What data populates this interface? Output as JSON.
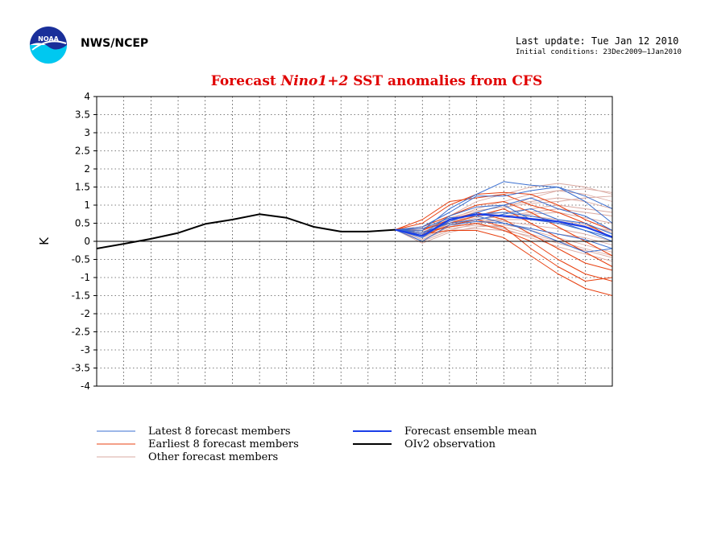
{
  "header": {
    "org": "NWS/NCEP",
    "last_update": "Last update: Tue Jan 12 2010",
    "initial_conditions": "Initial conditions: 23Dec2009–1Jan2010"
  },
  "logo_text": "NOAA",
  "chart_data": {
    "type": "line",
    "title_prefix": "Forecast ",
    "title_italic": "Nino1+2",
    "title_suffix": " SST anomalies from CFS",
    "ylabel": "K",
    "ylim": [
      -4,
      4
    ],
    "yticks": [
      4,
      3.5,
      3,
      2.5,
      2,
      1.5,
      1,
      0.5,
      0,
      -0.5,
      -1,
      -1.5,
      -2,
      -2.5,
      -3,
      -3.5,
      -4
    ],
    "xlim": [
      0,
      19
    ],
    "grid": true,
    "legend_position": "bottom",
    "colors": {
      "latest": "#3a6fd0",
      "earliest": "#e84010",
      "other": "#d9a8a0",
      "mean": "#1a3ee8",
      "observation": "#000000"
    },
    "observation": {
      "name": "OIv2 observation",
      "x": [
        0,
        1,
        2,
        3,
        4,
        5,
        6,
        7,
        8,
        9,
        10,
        11
      ],
      "y": [
        -0.2,
        -0.07,
        0.07,
        0.23,
        0.48,
        0.6,
        0.75,
        0.65,
        0.4,
        0.27,
        0.27,
        0.32
      ]
    },
    "ensemble_mean": {
      "name": "Forecast ensemble mean",
      "x": [
        11,
        12,
        13,
        14,
        15,
        16,
        17,
        18,
        19
      ],
      "y": [
        0.32,
        0.15,
        0.6,
        0.75,
        0.7,
        0.62,
        0.55,
        0.4,
        0.12
      ]
    },
    "member_x": [
      11,
      12,
      13,
      14,
      15,
      16,
      17,
      18,
      19
    ],
    "latest_members": {
      "name": "Latest 8 forecast members",
      "series": [
        [
          0.32,
          0.3,
          0.9,
          1.3,
          1.65,
          1.55,
          1.5,
          1.25,
          0.9
        ],
        [
          0.32,
          0.4,
          0.8,
          1.25,
          1.25,
          1.4,
          1.5,
          1.1,
          0.5
        ],
        [
          0.32,
          0.2,
          0.7,
          0.95,
          1.0,
          1.2,
          0.9,
          0.7,
          0.3
        ],
        [
          0.32,
          0.1,
          0.6,
          0.75,
          0.8,
          0.7,
          0.55,
          0.3,
          0.1
        ],
        [
          0.32,
          0.25,
          0.5,
          0.6,
          0.75,
          0.9,
          0.6,
          0.5,
          0.2
        ],
        [
          0.32,
          0.0,
          0.45,
          0.55,
          0.5,
          0.35,
          0.2,
          0.05,
          -0.2
        ],
        [
          0.32,
          0.15,
          0.55,
          0.8,
          1.0,
          0.6,
          0.5,
          0.3,
          0.0
        ],
        [
          0.32,
          0.35,
          0.65,
          0.7,
          0.5,
          0.3,
          0.0,
          -0.3,
          -0.2
        ]
      ]
    },
    "earliest_members": {
      "name": "Earliest 8 forecast members",
      "series": [
        [
          0.32,
          0.5,
          1.0,
          1.3,
          1.35,
          1.3,
          1.0,
          0.6,
          0.3
        ],
        [
          0.32,
          0.6,
          1.1,
          1.2,
          1.3,
          1.0,
          0.8,
          0.5,
          0.1
        ],
        [
          0.32,
          0.35,
          0.5,
          0.7,
          0.9,
          0.5,
          0.1,
          -0.3,
          -0.7
        ],
        [
          0.32,
          0.25,
          0.4,
          0.5,
          0.3,
          0.0,
          -0.5,
          -0.9,
          -1.1
        ],
        [
          0.32,
          0.2,
          0.3,
          0.3,
          0.1,
          -0.4,
          -0.9,
          -1.3,
          -1.5
        ],
        [
          0.32,
          0.3,
          0.6,
          0.8,
          0.6,
          0.2,
          -0.2,
          -0.6,
          -0.8
        ],
        [
          0.32,
          0.15,
          0.45,
          0.6,
          0.4,
          -0.2,
          -0.7,
          -1.1,
          -1.0
        ],
        [
          0.32,
          0.4,
          0.7,
          1.0,
          1.1,
          0.8,
          0.4,
          0.0,
          -0.4
        ]
      ]
    },
    "other_members": {
      "name": "Other forecast members",
      "series": [
        [
          0.32,
          0.3,
          0.7,
          1.1,
          1.3,
          1.5,
          1.6,
          1.5,
          1.3
        ],
        [
          0.32,
          0.25,
          0.6,
          0.9,
          1.1,
          1.3,
          1.4,
          1.3,
          1.1
        ],
        [
          0.32,
          0.2,
          0.5,
          0.8,
          1.0,
          1.1,
          1.2,
          1.1,
          0.9
        ],
        [
          0.32,
          0.1,
          0.4,
          0.6,
          0.7,
          0.8,
          0.9,
          0.8,
          0.7
        ],
        [
          0.32,
          0.0,
          0.3,
          0.5,
          0.6,
          0.6,
          0.5,
          0.4,
          0.3
        ],
        [
          0.32,
          -0.05,
          0.25,
          0.4,
          0.45,
          0.35,
          0.2,
          0.1,
          -0.1
        ],
        [
          0.32,
          0.05,
          0.35,
          0.45,
          0.4,
          0.2,
          0.0,
          -0.2,
          -0.4
        ],
        [
          0.32,
          0.15,
          0.45,
          0.55,
          0.5,
          0.3,
          0.1,
          -0.1,
          -0.3
        ],
        [
          0.32,
          0.2,
          0.55,
          0.7,
          0.8,
          0.9,
          1.0,
          0.9,
          0.8
        ],
        [
          0.32,
          0.3,
          0.65,
          0.85,
          0.95,
          1.05,
          1.1,
          1.2,
          1.25
        ],
        [
          0.32,
          0.1,
          0.5,
          0.6,
          0.55,
          0.45,
          0.35,
          0.2,
          0.0
        ],
        [
          0.32,
          0.05,
          0.4,
          0.5,
          0.35,
          0.1,
          -0.15,
          -0.35,
          -0.55
        ],
        [
          0.32,
          0.25,
          0.6,
          0.75,
          0.7,
          0.75,
          0.8,
          0.65,
          0.5
        ],
        [
          0.32,
          0.15,
          0.5,
          0.65,
          0.9,
          1.2,
          1.4,
          1.45,
          1.35
        ],
        [
          0.32,
          0.2,
          0.4,
          0.5,
          0.65,
          0.7,
          0.6,
          0.45,
          0.25
        ],
        [
          0.32,
          0.0,
          0.3,
          0.35,
          0.3,
          0.15,
          -0.05,
          -0.25,
          -0.45
        ]
      ]
    }
  }
}
